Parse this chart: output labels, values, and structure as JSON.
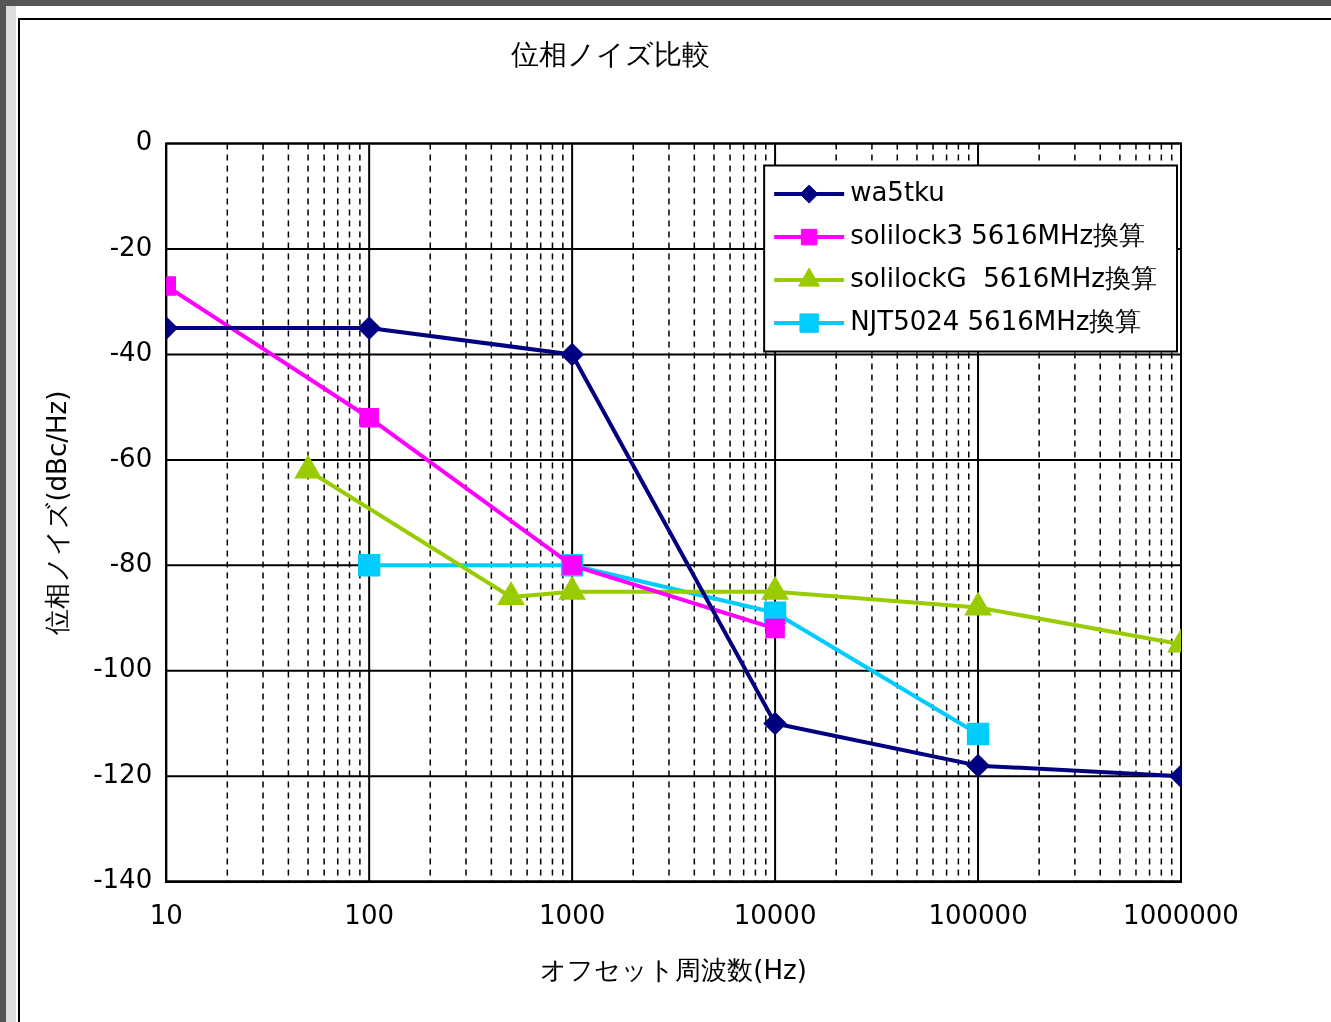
{
  "chart_data": {
    "type": "line",
    "title": "位相ノイズ比較",
    "xlabel": "オフセット周波数(Hz)",
    "ylabel": "位相ノイズ(dBc/Hz)",
    "log": "x",
    "grid": true,
    "legend": "top right",
    "xlim": [
      10,
      1000000
    ],
    "ylim": [
      -140,
      0
    ],
    "xticks": [
      10,
      {
        "value": 20,
        "label": null
      },
      {
        "value": 30,
        "label": null
      },
      {
        "value": 40,
        "label": null
      },
      {
        "value": 50,
        "label": null
      },
      {
        "value": 60,
        "label": null
      },
      {
        "value": 70,
        "label": null
      },
      {
        "value": 80,
        "label": null
      },
      {
        "value": 90,
        "label": null
      },
      100,
      {
        "value": 200,
        "label": null
      },
      {
        "value": 300,
        "label": null
      },
      {
        "value": 400,
        "label": null
      },
      {
        "value": 500,
        "label": null
      },
      {
        "value": 600,
        "label": null
      },
      {
        "value": 700,
        "label": null
      },
      {
        "value": 800,
        "label": null
      },
      {
        "value": 900,
        "label": null
      },
      1000,
      {
        "value": 2000,
        "label": null
      },
      {
        "value": 3000,
        "label": null
      },
      {
        "value": 4000,
        "label": null
      },
      {
        "value": 5000,
        "label": null
      },
      {
        "value": 6000,
        "label": null
      },
      {
        "value": 7000,
        "label": null
      },
      {
        "value": 8000,
        "label": null
      },
      {
        "value": 9000,
        "label": null
      },
      10000,
      {
        "value": 20000,
        "label": null
      },
      {
        "value": 30000,
        "label": null
      },
      {
        "value": 40000,
        "label": null
      },
      {
        "value": 50000,
        "label": null
      },
      {
        "value": 60000,
        "label": null
      },
      {
        "value": 70000,
        "label": null
      },
      {
        "value": 80000,
        "label": null
      },
      {
        "value": 90000,
        "label": null
      },
      100000,
      {
        "value": 200000,
        "label": null
      },
      {
        "value": 300000,
        "label": null
      },
      {
        "value": 400000,
        "label": null
      },
      {
        "value": 500000,
        "label": null
      },
      {
        "value": 600000,
        "label": null
      },
      {
        "value": 700000,
        "label": null
      },
      {
        "value": 800000,
        "label": null
      },
      {
        "value": 900000,
        "label": null
      },
      1000000
    ],
    "yticks": [
      -140,
      -120,
      -100,
      -80,
      -60,
      -40,
      -20,
      0
    ],
    "series": [
      {
        "name": "wa5tku",
        "color": "#000080",
        "marker": "diamond",
        "x": [
          10,
          100,
          1000,
          10000,
          100000,
          1000000
        ],
        "values": [
          -35,
          -35,
          -40,
          -110,
          -118,
          -120
        ]
      },
      {
        "name": "solilock3 5616MHz換算",
        "color": "#ff00ff",
        "marker": "square",
        "x": [
          10,
          100,
          1000,
          10000
        ],
        "values": [
          -27,
          -52,
          -80,
          -92
        ]
      },
      {
        "name": "solilockG  5616MHz換算",
        "color": "#99cc00",
        "marker": "triangle",
        "x": [
          50,
          500,
          1000,
          10000,
          100000,
          1000000
        ],
        "values": [
          -62,
          -86,
          -85,
          -85,
          -88,
          -95
        ]
      },
      {
        "name": "NJT5024 5616MHz換算",
        "color": "#00ccff",
        "marker": "square",
        "x": [
          100,
          1000,
          10000,
          100000
        ],
        "values": [
          -80,
          -80,
          -89,
          -112
        ]
      }
    ]
  }
}
